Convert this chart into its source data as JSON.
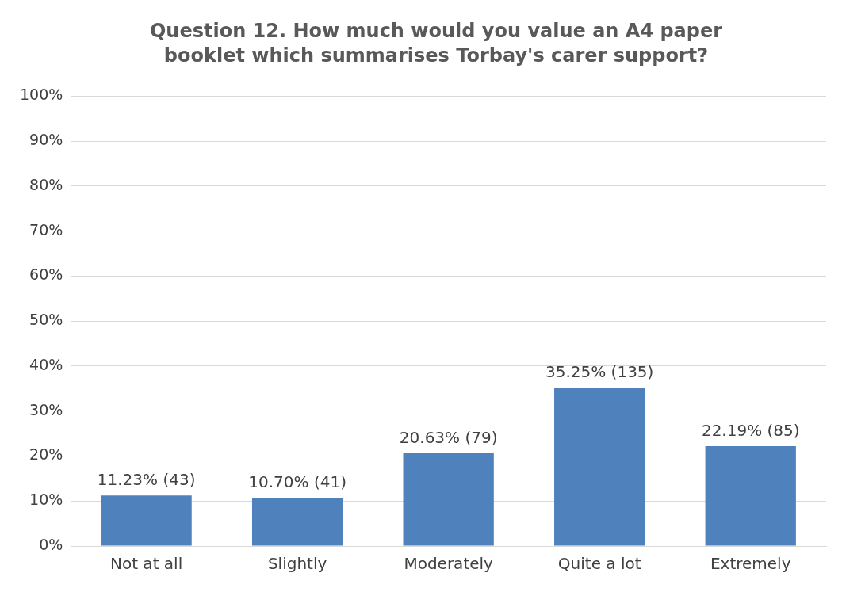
{
  "chart_data": {
    "type": "bar",
    "title": "Question 12. How much would you value an A4 paper booklet which summarises Torbay's carer support?",
    "categories": [
      "Not at all",
      "Slightly",
      "Moderately",
      "Quite a lot",
      "Extremely"
    ],
    "values": [
      11.23,
      10.7,
      20.63,
      35.25,
      22.19
    ],
    "value_labels": [
      "11.23% (43)",
      "10.70% (41)",
      "20.63% (79)",
      "35.25% (135)",
      "22.19% (85)"
    ],
    "color": "#4f81bd",
    "ylim": [
      0,
      100
    ],
    "yticks": [
      {
        "value": 0,
        "label": "0%"
      },
      {
        "value": 10,
        "label": "10%"
      },
      {
        "value": 20,
        "label": "20%"
      },
      {
        "value": 30,
        "label": "30%"
      },
      {
        "value": 40,
        "label": "40%"
      },
      {
        "value": 50,
        "label": "50%"
      },
      {
        "value": 60,
        "label": "60%"
      },
      {
        "value": 70,
        "label": "70%"
      },
      {
        "value": 80,
        "label": "80%"
      },
      {
        "value": 90,
        "label": "90%"
      },
      {
        "value": 100,
        "label": "100%"
      }
    ],
    "grid": "y",
    "legend": false
  }
}
